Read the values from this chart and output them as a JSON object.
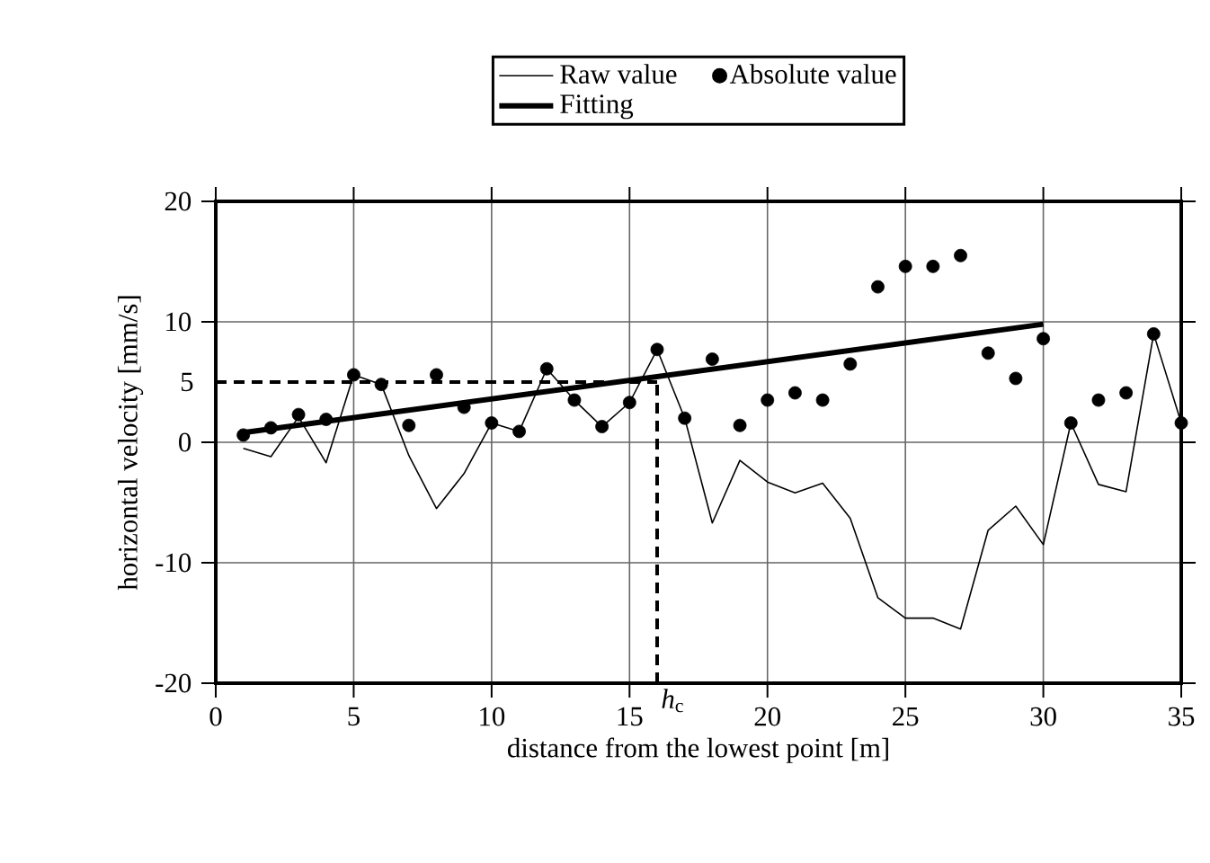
{
  "chart_data": {
    "type": "line",
    "xlabel": "distance from the lowest point [m]",
    "ylabel": "horizontal velocity [mm/s]",
    "x": [
      1,
      2,
      3,
      4,
      5,
      6,
      7,
      8,
      9,
      10,
      11,
      12,
      13,
      14,
      15,
      16,
      17,
      18,
      19,
      20,
      21,
      22,
      23,
      24,
      25,
      26,
      27,
      28,
      29,
      30,
      31,
      32,
      33,
      34,
      35
    ],
    "series": [
      {
        "name": "Raw value",
        "color": "#000000",
        "values": [
          -0.5,
          -1.2,
          2.1,
          -1.7,
          5.6,
          4.8,
          -1.1,
          -5.5,
          -2.6,
          1.6,
          0.9,
          6.1,
          3.5,
          1.3,
          3.3,
          7.7,
          2.0,
          -6.7,
          -1.5,
          -3.3,
          -4.2,
          -3.4,
          -6.3,
          -12.9,
          -14.6,
          -14.6,
          -15.5,
          -7.3,
          -5.3,
          -8.5,
          1.6,
          -3.5,
          -4.1,
          9.0,
          1.6
        ]
      },
      {
        "name": "Absolute value",
        "type": "scatter",
        "marker": "circle",
        "color": "#000000",
        "values": [
          0.6,
          1.2,
          2.3,
          1.9,
          5.6,
          4.8,
          1.4,
          5.6,
          2.9,
          1.6,
          0.9,
          6.1,
          3.5,
          1.3,
          3.3,
          7.7,
          2.0,
          6.9,
          1.4,
          3.5,
          4.1,
          3.5,
          6.5,
          12.9,
          14.6,
          14.6,
          15.5,
          7.4,
          5.3,
          8.6,
          1.6,
          3.5,
          4.1,
          9.0,
          1.6
        ]
      },
      {
        "name": "Fitting",
        "color": "#000000",
        "x": [
          1,
          30
        ],
        "values": [
          0.8,
          9.8
        ]
      }
    ],
    "xlim": [
      0,
      35
    ],
    "xticks": [
      0,
      5,
      10,
      15,
      20,
      25,
      30,
      35
    ],
    "ylim": [
      -20,
      20
    ],
    "yticks": [
      -20,
      -10,
      0,
      10,
      20
    ],
    "grid": true,
    "legend": "top",
    "ref_lines": [
      {
        "axis": "y",
        "value": 5,
        "label": "5",
        "line_style": "dashed",
        "color": "#000000"
      },
      {
        "axis": "x",
        "value": 16,
        "label": "*h*$_{c}$",
        "line_style": "dashed",
        "color": "#000000"
      }
    ]
  }
}
